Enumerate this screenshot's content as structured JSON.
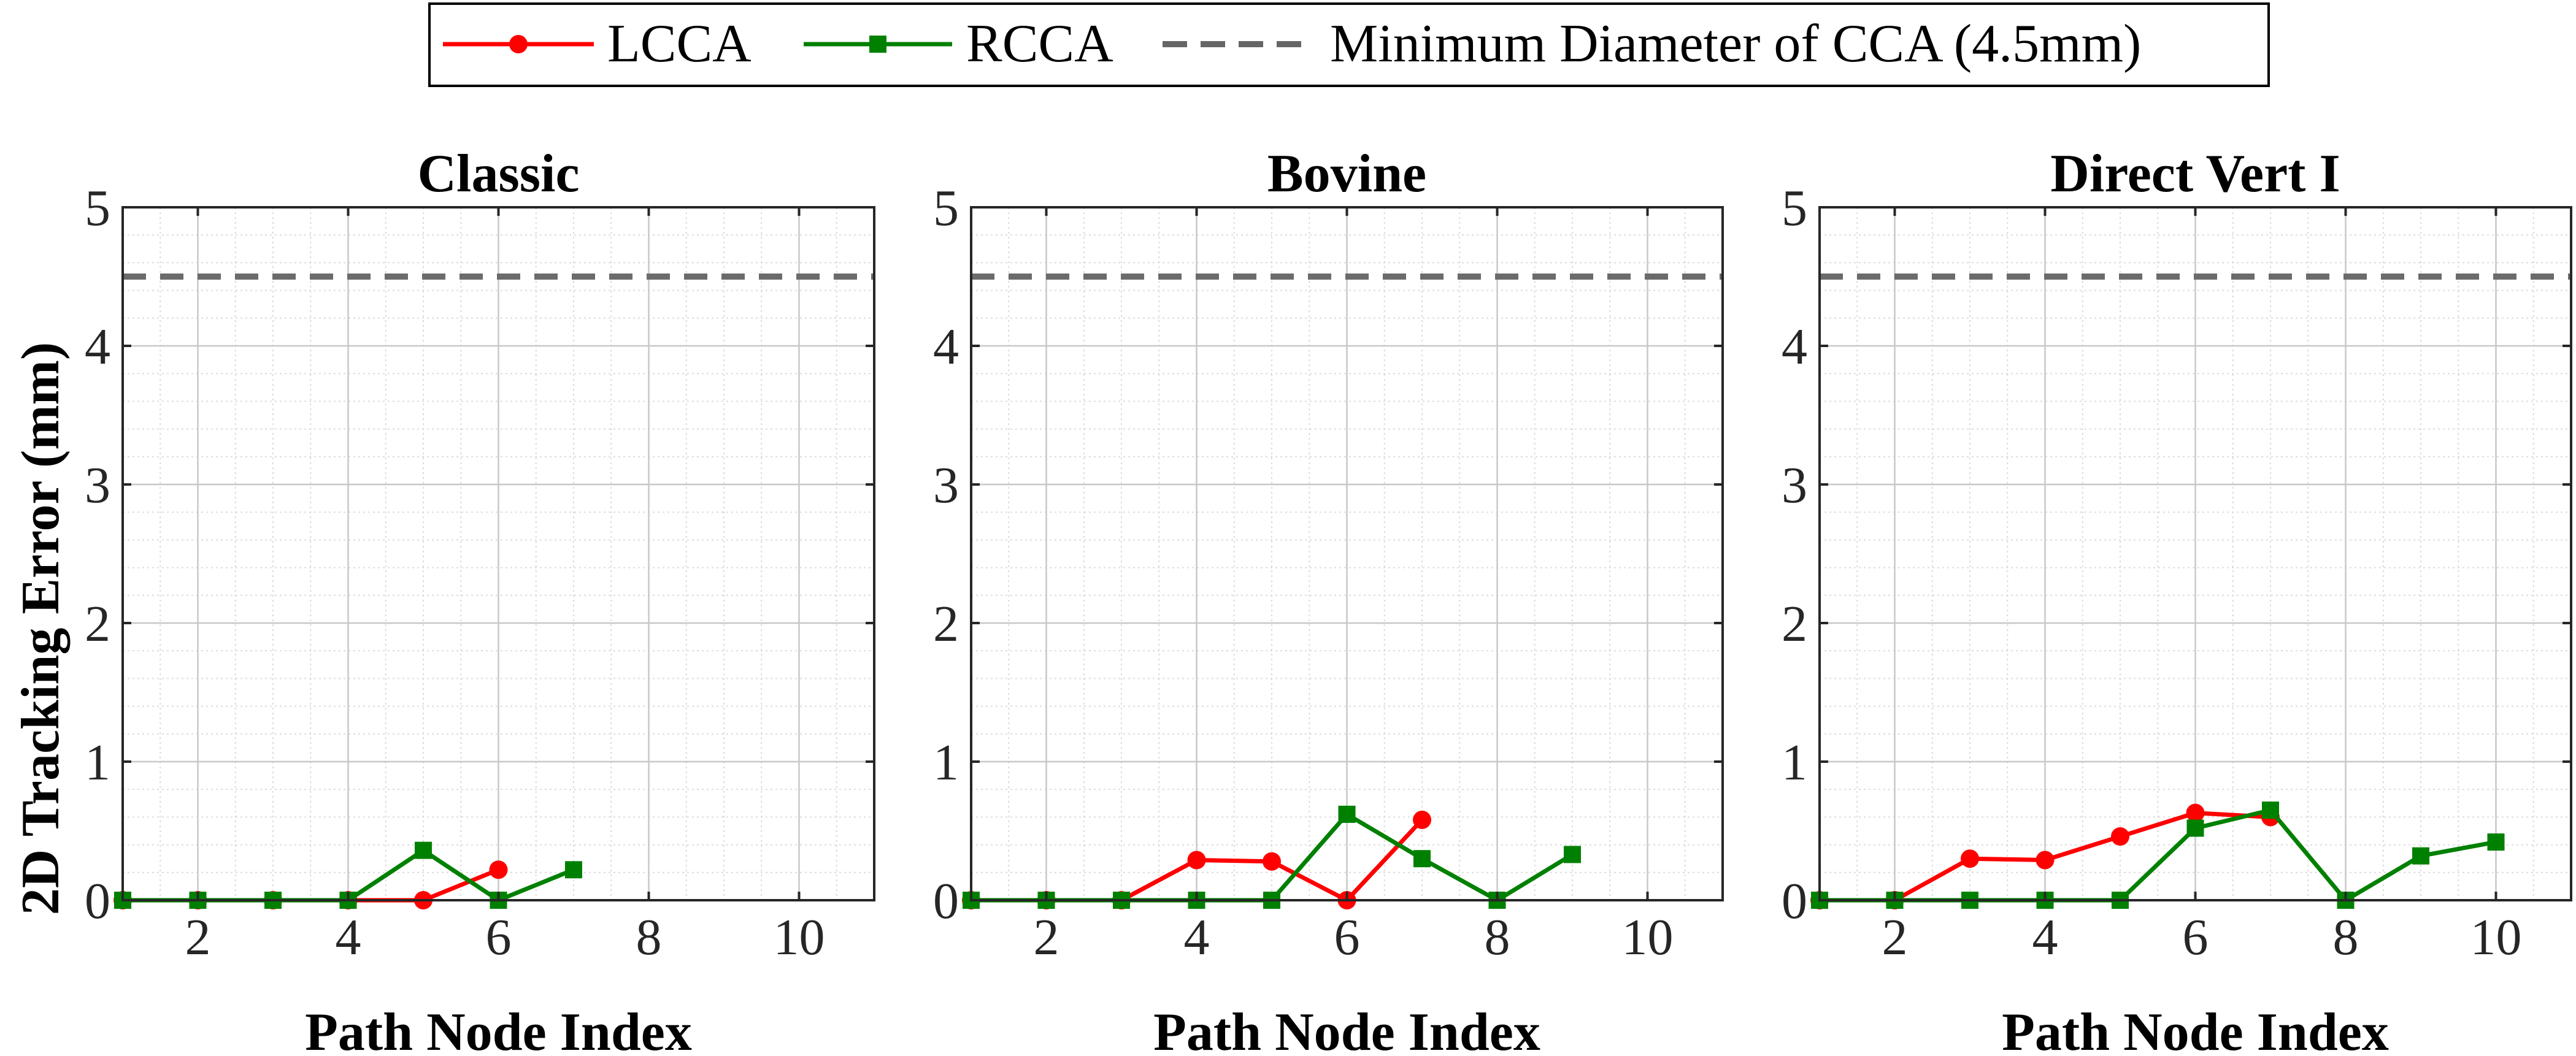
{
  "figure": {
    "legend": {
      "entries": [
        {
          "label": "LCCA",
          "color": "#ff0000",
          "marker": "circle",
          "style": "solid"
        },
        {
          "label": "RCCA",
          "color": "#008000",
          "marker": "square",
          "style": "solid"
        },
        {
          "label": "Minimum Diameter of CCA (4.5mm)",
          "color": "#666666",
          "marker": "none",
          "style": "dashed"
        }
      ],
      "placement": "top-center"
    },
    "colors": {
      "lcca": "#ff0000",
      "rcca": "#008000",
      "threshold": "#6b6b6b",
      "axis": "#262626"
    }
  },
  "chart_data": [
    {
      "type": "line",
      "title": "Classic",
      "xlabel": "Path Node Index",
      "ylabel": "2D Tracking Error (mm)",
      "xlim": [
        1,
        11
      ],
      "ylim": [
        0,
        5
      ],
      "xticks": [
        2,
        4,
        6,
        8,
        10
      ],
      "yticks": [
        0,
        1,
        2,
        3,
        4,
        5
      ],
      "grid": true,
      "threshold": 4.5,
      "series": [
        {
          "name": "LCCA",
          "x": [
            1,
            2,
            3,
            4,
            5,
            6
          ],
          "y": [
            0,
            0,
            0,
            0,
            0,
            0.22
          ]
        },
        {
          "name": "RCCA",
          "x": [
            1,
            2,
            3,
            4,
            5,
            6,
            7
          ],
          "y": [
            0,
            0,
            0,
            0,
            0.36,
            0,
            0.22
          ]
        }
      ]
    },
    {
      "type": "line",
      "title": "Bovine",
      "xlabel": "Path Node Index",
      "ylabel": "",
      "xlim": [
        1,
        11
      ],
      "ylim": [
        0,
        5
      ],
      "xticks": [
        2,
        4,
        6,
        8,
        10
      ],
      "yticks": [
        0,
        1,
        2,
        3,
        4,
        5
      ],
      "grid": true,
      "threshold": 4.5,
      "series": [
        {
          "name": "LCCA",
          "x": [
            1,
            2,
            3,
            4,
            5,
            6,
            7
          ],
          "y": [
            0,
            0,
            0,
            0.29,
            0.28,
            0,
            0.58
          ]
        },
        {
          "name": "RCCA",
          "x": [
            1,
            2,
            3,
            4,
            5,
            6,
            7,
            8,
            9
          ],
          "y": [
            0,
            0,
            0,
            0,
            0,
            0.62,
            0.3,
            0,
            0.33
          ]
        }
      ]
    },
    {
      "type": "line",
      "title": "Direct Vert I",
      "xlabel": "Path Node Index",
      "ylabel": "",
      "xlim": [
        1,
        11
      ],
      "ylim": [
        0,
        5
      ],
      "xticks": [
        2,
        4,
        6,
        8,
        10
      ],
      "yticks": [
        0,
        1,
        2,
        3,
        4,
        5
      ],
      "grid": true,
      "threshold": 4.5,
      "series": [
        {
          "name": "LCCA",
          "x": [
            1,
            2,
            3,
            4,
            5,
            6,
            7
          ],
          "y": [
            0,
            0,
            0.3,
            0.29,
            0.46,
            0.63,
            0.6
          ]
        },
        {
          "name": "RCCA",
          "x": [
            1,
            2,
            3,
            4,
            5,
            6,
            7,
            8,
            9,
            10
          ],
          "y": [
            0,
            0,
            0,
            0,
            0,
            0.52,
            0.65,
            0,
            0.32,
            0.42
          ]
        }
      ]
    }
  ]
}
